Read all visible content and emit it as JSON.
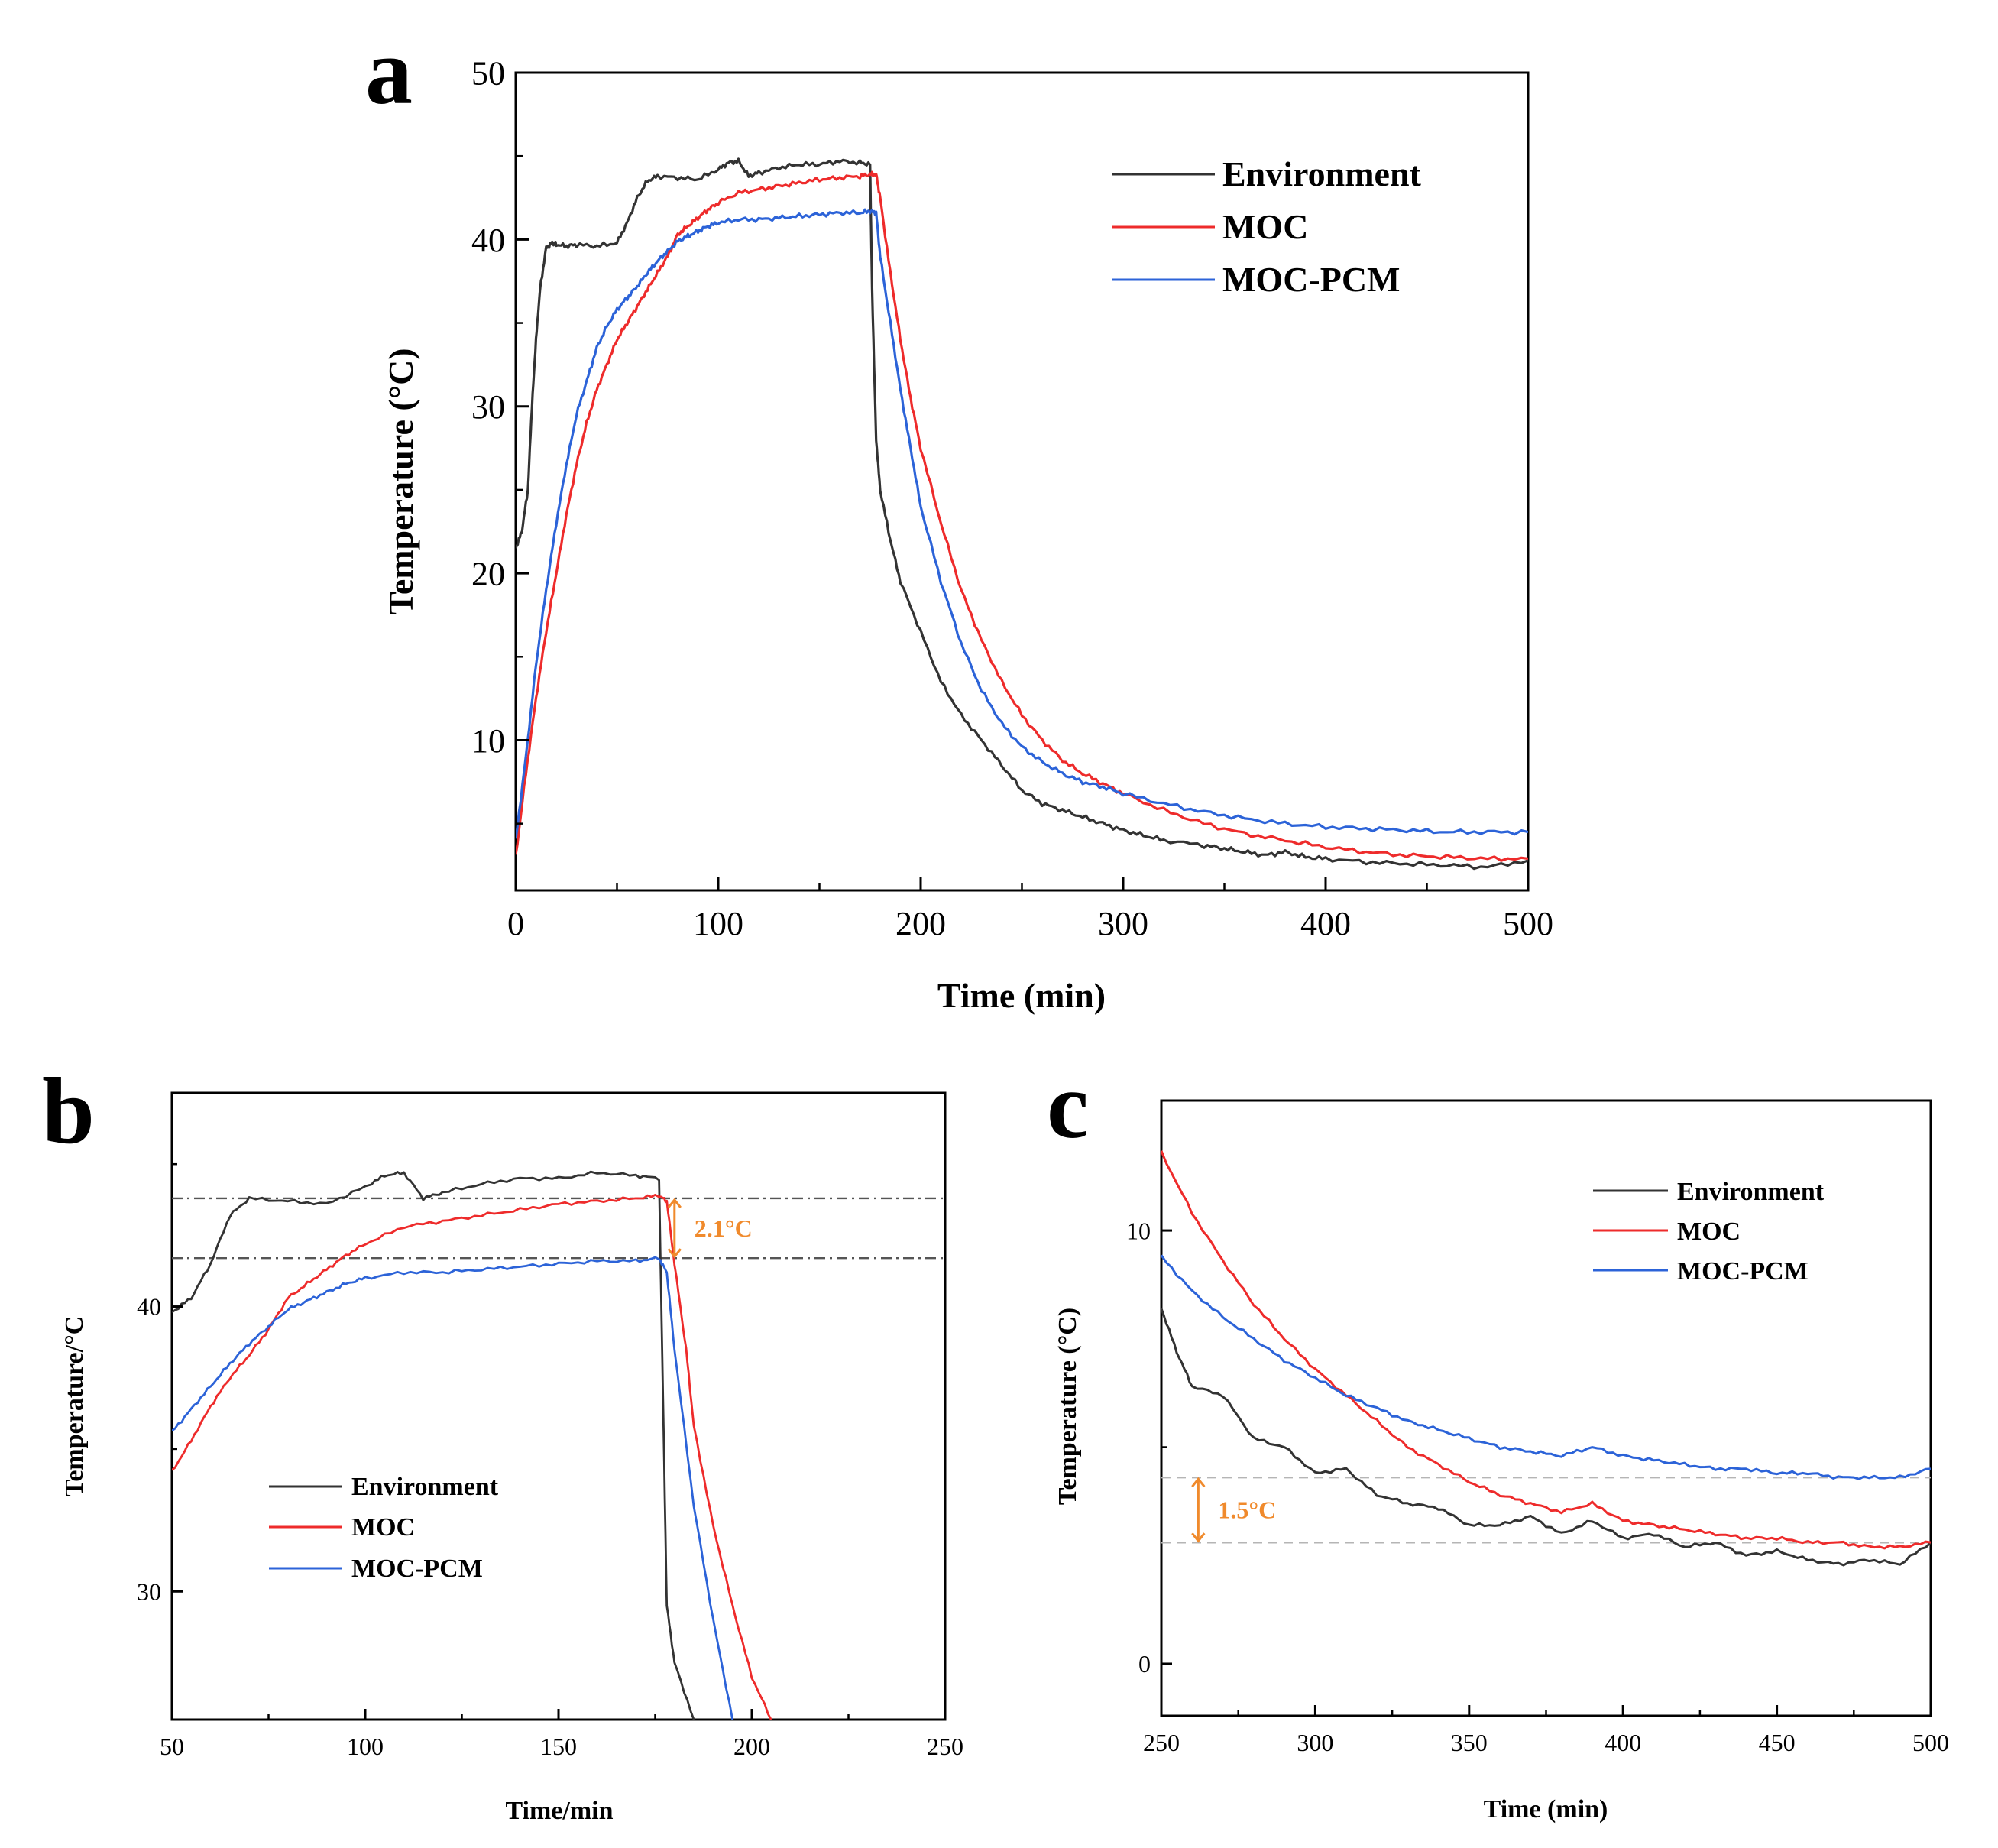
{
  "colors": {
    "environment": "#333333",
    "moc": "#ee2b2b",
    "moc_pcm": "#2c63d8",
    "annotation": "#f08a2c",
    "ref_dashdot": "#555555",
    "ref_dash": "#b5b5b5",
    "axis": "#000000"
  },
  "chart_data": [
    {
      "panel": "a",
      "type": "line",
      "title": "",
      "xlabel": "Time (min)",
      "ylabel": "Temperature (°C)",
      "xlim": [
        0,
        500
      ],
      "ylim": [
        1,
        50
      ],
      "xticks": [
        0,
        100,
        200,
        300,
        400,
        500
      ],
      "yticks": [
        10,
        20,
        30,
        40,
        50
      ],
      "legend_position": "top-right",
      "series": [
        {
          "name": "Environment",
          "color_key": "environment",
          "x": [
            0,
            3,
            6,
            8,
            10,
            12,
            15,
            18,
            20,
            25,
            30,
            40,
            50,
            55,
            60,
            65,
            70,
            80,
            90,
            100,
            105,
            110,
            115,
            120,
            130,
            140,
            150,
            160,
            170,
            175,
            176,
            178,
            180,
            185,
            190,
            200,
            210,
            220,
            230,
            240,
            250,
            260,
            270,
            280,
            290,
            300,
            310,
            320,
            340,
            350,
            360,
            370,
            380,
            390,
            400,
            420,
            440,
            460,
            480,
            500
          ],
          "y": [
            21.5,
            22.5,
            25,
            30,
            34,
            37,
            39.5,
            39.8,
            39.7,
            39.6,
            39.7,
            39.6,
            39.8,
            41,
            42.5,
            43.5,
            43.8,
            43.7,
            43.6,
            44.2,
            44.6,
            44.7,
            43.8,
            44.0,
            44.3,
            44.5,
            44.5,
            44.7,
            44.6,
            44.5,
            37,
            28,
            25,
            22,
            19.5,
            16.5,
            13.5,
            11.5,
            10,
            8.5,
            7,
            6.2,
            5.8,
            5.4,
            5.0,
            4.6,
            4.3,
            4.0,
            3.7,
            3.5,
            3.3,
            3.1,
            3.3,
            3.0,
            2.9,
            2.7,
            2.6,
            2.5,
            2.4,
            2.8
          ]
        },
        {
          "name": "MOC",
          "color_key": "moc",
          "x": [
            0,
            5,
            10,
            15,
            20,
            25,
            30,
            35,
            40,
            45,
            50,
            55,
            60,
            65,
            70,
            75,
            80,
            85,
            90,
            95,
            100,
            110,
            120,
            130,
            140,
            150,
            160,
            170,
            175,
            178,
            180,
            185,
            190,
            195,
            200,
            210,
            220,
            230,
            240,
            250,
            260,
            270,
            280,
            290,
            300,
            320,
            340,
            360,
            380,
            400,
            420,
            440,
            460,
            480,
            500
          ],
          "y": [
            3,
            8,
            12.5,
            16.5,
            20,
            23.5,
            26.5,
            29,
            31,
            32.5,
            34,
            35,
            36,
            37,
            38,
            39,
            40.3,
            40.8,
            41.3,
            41.8,
            42.2,
            42.8,
            43.0,
            43.2,
            43.4,
            43.6,
            43.7,
            43.8,
            43.9,
            43.9,
            42.5,
            38,
            34,
            30.5,
            27.5,
            23,
            19,
            16,
            13.5,
            11.5,
            10,
            8.8,
            8,
            7.4,
            6.8,
            5.8,
            5.0,
            4.4,
            4.0,
            3.6,
            3.3,
            3.1,
            3.0,
            2.9,
            2.9
          ]
        },
        {
          "name": "MOC-PCM",
          "color_key": "moc_pcm",
          "x": [
            0,
            5,
            10,
            15,
            20,
            25,
            30,
            35,
            40,
            45,
            50,
            55,
            60,
            65,
            70,
            75,
            80,
            85,
            90,
            95,
            100,
            110,
            120,
            130,
            140,
            150,
            160,
            170,
            175,
            178,
            180,
            185,
            190,
            195,
            200,
            210,
            220,
            230,
            240,
            250,
            260,
            270,
            280,
            290,
            300,
            320,
            340,
            360,
            380,
            400,
            420,
            440,
            460,
            480,
            500
          ],
          "y": [
            4,
            9,
            14.5,
            19,
            23,
            26.5,
            29.5,
            31.5,
            33.5,
            34.8,
            35.8,
            36.5,
            37.2,
            38,
            38.7,
            39.3,
            39.9,
            40.2,
            40.5,
            40.8,
            41.0,
            41.2,
            41.2,
            41.3,
            41.4,
            41.5,
            41.6,
            41.6,
            41.7,
            41.6,
            39,
            35,
            31,
            27.5,
            24,
            19.5,
            15.8,
            13,
            11,
            9.6,
            8.7,
            8.0,
            7.5,
            7.2,
            6.8,
            6.2,
            5.7,
            5.3,
            5.0,
            4.8,
            4.7,
            4.6,
            4.5,
            4.5,
            4.5
          ]
        }
      ]
    },
    {
      "panel": "b",
      "type": "line",
      "title": "",
      "xlabel": "Time/min",
      "ylabel": "Temperature/°C",
      "xlim": [
        50,
        250
      ],
      "ylim": [
        25.5,
        47.5
      ],
      "xticks": [
        50,
        100,
        150,
        200,
        250
      ],
      "yticks": [
        30,
        40
      ],
      "legend_position": "lower-left",
      "reference_lines": [
        {
          "y": 43.8,
          "style": "dash-dot"
        },
        {
          "y": 41.7,
          "style": "dash-dot"
        }
      ],
      "annotations": [
        {
          "text": "2.1°C",
          "y_from": 41.7,
          "y_to": 43.8,
          "x": 180
        }
      ],
      "series": [
        {
          "name": "Environment",
          "color_key": "environment",
          "x": [
            50,
            55,
            60,
            65,
            70,
            80,
            90,
            100,
            105,
            110,
            115,
            120,
            130,
            140,
            150,
            160,
            170,
            176,
            177,
            178,
            180,
            185
          ],
          "y": [
            39.8,
            40.3,
            41.5,
            43.2,
            43.8,
            43.7,
            43.6,
            44.2,
            44.6,
            44.7,
            43.8,
            44.0,
            44.3,
            44.5,
            44.5,
            44.7,
            44.6,
            44.5,
            37,
            29.5,
            27.5,
            25.5
          ]
        },
        {
          "name": "MOC",
          "color_key": "moc",
          "x": [
            50,
            55,
            60,
            65,
            70,
            75,
            80,
            85,
            90,
            95,
            100,
            110,
            120,
            130,
            140,
            150,
            160,
            170,
            176,
            178,
            180,
            183,
            185,
            190,
            195,
            200,
            205
          ],
          "y": [
            34.2,
            35.3,
            36.5,
            37.5,
            38.3,
            39.2,
            40.3,
            40.8,
            41.3,
            41.8,
            42.2,
            42.8,
            43.0,
            43.2,
            43.4,
            43.6,
            43.7,
            43.8,
            43.9,
            43.7,
            41.5,
            38.5,
            35.8,
            32.3,
            29.5,
            27,
            25.5
          ]
        },
        {
          "name": "MOC-PCM",
          "color_key": "moc_pcm",
          "x": [
            50,
            55,
            60,
            65,
            70,
            75,
            80,
            85,
            90,
            95,
            100,
            110,
            120,
            130,
            140,
            150,
            160,
            170,
            176,
            178,
            180,
            185,
            190,
            195
          ],
          "y": [
            35.6,
            36.4,
            37.2,
            38,
            38.7,
            39.3,
            39.9,
            40.2,
            40.5,
            40.8,
            41.0,
            41.2,
            41.2,
            41.3,
            41.4,
            41.5,
            41.6,
            41.6,
            41.7,
            41.2,
            38.5,
            33,
            29,
            25.5
          ]
        }
      ]
    },
    {
      "panel": "c",
      "type": "line",
      "title": "",
      "xlabel": "Time (min)",
      "ylabel": "Temperature (°C)",
      "xlim": [
        250,
        500
      ],
      "ylim": [
        -1.2,
        13
      ],
      "xticks": [
        250,
        300,
        350,
        400,
        450,
        500
      ],
      "yticks": [
        0,
        10
      ],
      "legend_position": "top-right",
      "reference_lines": [
        {
          "y": 4.3,
          "style": "dash"
        },
        {
          "y": 2.8,
          "style": "dash"
        }
      ],
      "annotations": [
        {
          "text": "1.5°C",
          "y_from": 2.8,
          "y_to": 4.3,
          "x": 262
        }
      ],
      "series": [
        {
          "name": "Environment",
          "color_key": "environment",
          "x": [
            250,
            255,
            260,
            270,
            280,
            290,
            300,
            310,
            320,
            330,
            340,
            350,
            360,
            370,
            380,
            390,
            400,
            410,
            420,
            430,
            440,
            450,
            460,
            470,
            480,
            490,
            500
          ],
          "y": [
            8.2,
            7.2,
            6.4,
            6.2,
            5.2,
            5.0,
            4.4,
            4.5,
            3.9,
            3.7,
            3.6,
            3.2,
            3.2,
            3.4,
            3.0,
            3.3,
            2.9,
            3.0,
            2.7,
            2.8,
            2.5,
            2.6,
            2.4,
            2.3,
            2.4,
            2.3,
            2.8
          ]
        },
        {
          "name": "MOC",
          "color_key": "moc",
          "x": [
            250,
            260,
            270,
            280,
            290,
            300,
            310,
            320,
            330,
            340,
            350,
            360,
            370,
            380,
            390,
            400,
            410,
            420,
            430,
            440,
            450,
            460,
            470,
            480,
            490,
            500
          ],
          "y": [
            11.8,
            10.4,
            9.3,
            8.3,
            7.5,
            6.8,
            6.2,
            5.6,
            5.0,
            4.6,
            4.2,
            3.9,
            3.7,
            3.5,
            3.7,
            3.3,
            3.2,
            3.1,
            3.0,
            2.9,
            2.9,
            2.8,
            2.8,
            2.7,
            2.7,
            2.8
          ]
        },
        {
          "name": "MOC-PCM",
          "color_key": "moc_pcm",
          "x": [
            250,
            260,
            270,
            280,
            290,
            300,
            310,
            320,
            330,
            340,
            350,
            360,
            370,
            380,
            390,
            400,
            410,
            420,
            430,
            440,
            450,
            460,
            470,
            480,
            490,
            500
          ],
          "y": [
            9.4,
            8.6,
            8.0,
            7.5,
            7.0,
            6.6,
            6.2,
            5.9,
            5.6,
            5.4,
            5.2,
            5.0,
            4.9,
            4.8,
            5.0,
            4.8,
            4.7,
            4.6,
            4.5,
            4.5,
            4.4,
            4.4,
            4.3,
            4.3,
            4.3,
            4.5
          ]
        }
      ]
    }
  ]
}
